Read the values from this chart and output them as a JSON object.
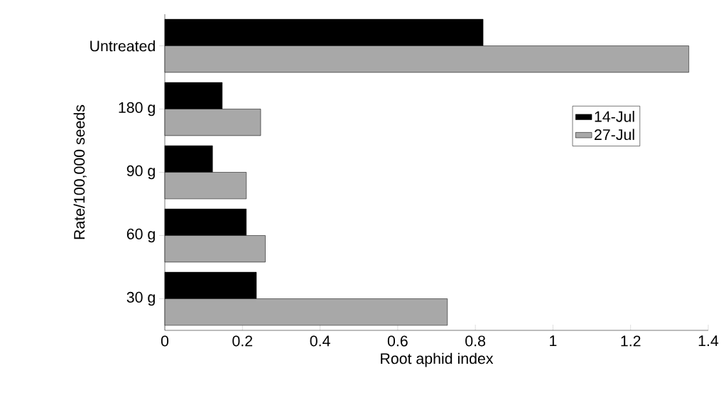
{
  "chart_data": {
    "type": "bar",
    "orientation": "horizontal",
    "xlabel": "Root aphid index",
    "ylabel": "Rate/100,000 seeds",
    "categories": [
      "Untreated",
      "180 g",
      "90 g",
      "60 g",
      "30 g"
    ],
    "series": [
      {
        "name": "14-Jul",
        "color": "#000000",
        "values": [
          0.82,
          0.148,
          0.123,
          0.21,
          0.236
        ]
      },
      {
        "name": "27-Jul",
        "color": "#a8a8a8",
        "values": [
          1.35,
          0.247,
          0.21,
          0.259,
          0.728
        ]
      }
    ],
    "xlim": [
      0,
      1.4
    ],
    "xticks": [
      0,
      0.2,
      0.4,
      0.6,
      0.8,
      1,
      1.2,
      1.4
    ],
    "legend": "right"
  }
}
